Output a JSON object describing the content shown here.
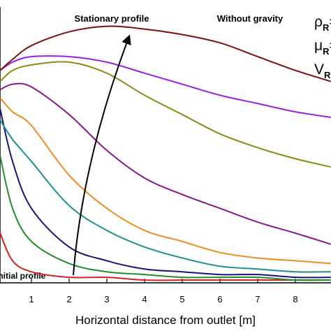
{
  "chart_data": {
    "type": "line",
    "xlabel": "Horizontal distance from outlet [m]",
    "annotations": [
      "Stationary profile",
      "Without gravity",
      "Initial profile"
    ],
    "parameters": [
      {
        "symbol": "ρ",
        "subscript": "R",
        "suffix": "="
      },
      {
        "symbol": "μ",
        "subscript": "R",
        "suffix": "="
      },
      {
        "symbol": "V",
        "subscript": "R",
        "suffix": "="
      }
    ],
    "xlim": [
      0,
      9
    ],
    "ylim": [
      0,
      1
    ],
    "xticks": [
      1,
      2,
      3,
      4,
      5,
      6,
      7,
      8
    ],
    "x": [
      0.17,
      0.5,
      1,
      2,
      3,
      4,
      5,
      6,
      7,
      8,
      8.94
    ],
    "series": [
      {
        "color": "#d62020",
        "values": [
          0.18,
          0.08,
          0.04,
          0.02,
          0.02,
          0.01,
          0.01,
          0.01,
          0.01,
          0.01,
          0.01
        ]
      },
      {
        "color": "#1f8f2a",
        "values": [
          0.46,
          0.27,
          0.15,
          0.07,
          0.04,
          0.03,
          0.02,
          0.02,
          0.02,
          0.01,
          0.01
        ]
      },
      {
        "color": "#14147a",
        "values": [
          0.63,
          0.44,
          0.27,
          0.13,
          0.08,
          0.05,
          0.04,
          0.03,
          0.03,
          0.02,
          0.02
        ]
      },
      {
        "color": "#1a9090",
        "values": [
          0.59,
          0.52,
          0.44,
          0.28,
          0.19,
          0.13,
          0.09,
          0.06,
          0.05,
          0.04,
          0.04
        ]
      },
      {
        "color": "#f08c1e",
        "values": [
          0.67,
          0.62,
          0.57,
          0.39,
          0.27,
          0.19,
          0.15,
          0.11,
          0.09,
          0.08,
          0.07
        ]
      },
      {
        "color": "#8a168a",
        "values": [
          0.7,
          0.72,
          0.71,
          0.61,
          0.48,
          0.38,
          0.32,
          0.27,
          0.22,
          0.18,
          0.14
        ]
      },
      {
        "color": "#8a8a14",
        "values": [
          0.73,
          0.77,
          0.79,
          0.8,
          0.76,
          0.68,
          0.61,
          0.54,
          0.49,
          0.45,
          0.42
        ]
      },
      {
        "color": "#9a1ee6",
        "values": [
          0.77,
          0.8,
          0.82,
          0.82,
          0.8,
          0.76,
          0.72,
          0.68,
          0.65,
          0.62,
          0.6
        ]
      },
      {
        "color": "#7a1010",
        "values": [
          0.77,
          0.81,
          0.86,
          0.91,
          0.93,
          0.92,
          0.9,
          0.87,
          0.82,
          0.77,
          0.73
        ]
      }
    ]
  }
}
